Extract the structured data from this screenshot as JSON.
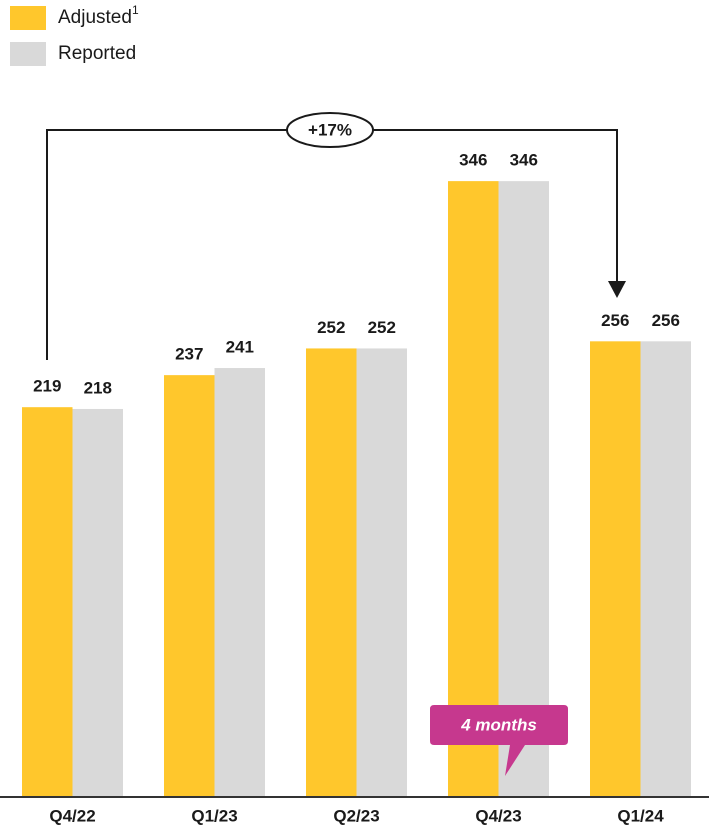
{
  "chart_data": {
    "type": "bar",
    "categories": [
      "Q4/22",
      "Q1/23",
      "Q2/23",
      "Q4/23",
      "Q1/24"
    ],
    "series": [
      {
        "name": "Adjusted",
        "color": "#ffc72c",
        "values": [
          219,
          237,
          252,
          346,
          256
        ]
      },
      {
        "name": "Reported",
        "color": "#d9d9d9",
        "values": [
          218,
          241,
          252,
          346,
          256
        ]
      }
    ],
    "legend_superscript": "1",
    "ylim": [
      0,
      400
    ],
    "growth_annotation": "+17%",
    "callout": "4 months",
    "callout_color": "#c6388e"
  }
}
